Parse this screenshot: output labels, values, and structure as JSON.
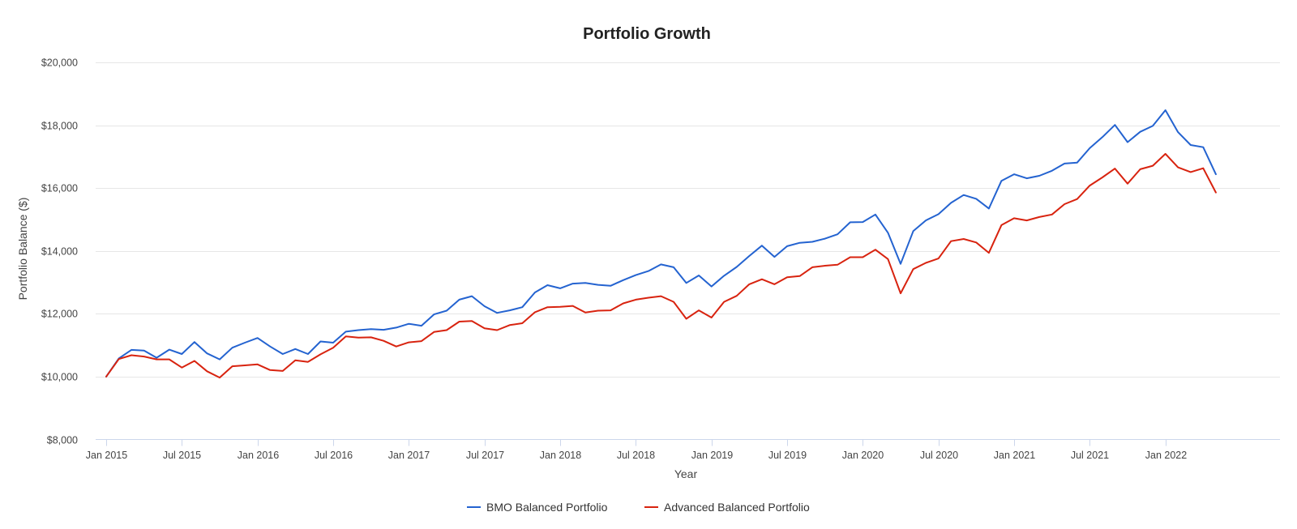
{
  "chart_data": {
    "type": "line",
    "title": "Portfolio Growth",
    "xlabel": "Year",
    "ylabel": "Portfolio Balance ($)",
    "ylim": [
      8000,
      20000
    ],
    "yticks": [
      8000,
      10000,
      12000,
      14000,
      16000,
      18000,
      20000
    ],
    "ytick_labels": [
      "$8,000",
      "$10,000",
      "$12,000",
      "$14,000",
      "$16,000",
      "$18,000",
      "$20,000"
    ],
    "xlim": [
      0,
      90
    ],
    "xticks": [
      {
        "label": "Jan 2015",
        "index": 0
      },
      {
        "label": "Jul 2015",
        "index": 6
      },
      {
        "label": "Jan 2016",
        "index": 12
      },
      {
        "label": "Jul 2016",
        "index": 18
      },
      {
        "label": "Jan 2017",
        "index": 24
      },
      {
        "label": "Jul 2017",
        "index": 30
      },
      {
        "label": "Jan 2018",
        "index": 36
      },
      {
        "label": "Jul 2018",
        "index": 42
      },
      {
        "label": "Jan 2019",
        "index": 48
      },
      {
        "label": "Jul 2019",
        "index": 54
      },
      {
        "label": "Jan 2020",
        "index": 60
      },
      {
        "label": "Jul 2020",
        "index": 66
      },
      {
        "label": "Jan 2021",
        "index": 72
      },
      {
        "label": "Jul 2021",
        "index": 78
      },
      {
        "label": "Jan 2022",
        "index": 84
      }
    ],
    "grid": true,
    "legend_position": "bottom-center",
    "series": [
      {
        "name": "BMO Balanced Portfolio",
        "color": "#2463d0",
        "values": [
          10000,
          10580,
          10850,
          10830,
          10600,
          10860,
          10720,
          11100,
          10740,
          10550,
          10920,
          11080,
          11230,
          10960,
          10720,
          10880,
          10720,
          11120,
          11080,
          11430,
          11480,
          11510,
          11490,
          11560,
          11680,
          11620,
          11980,
          12100,
          12450,
          12560,
          12240,
          12030,
          12110,
          12210,
          12680,
          12910,
          12810,
          12960,
          12980,
          12920,
          12890,
          13070,
          13230,
          13360,
          13570,
          13480,
          12980,
          13220,
          12870,
          13210,
          13490,
          13840,
          14170,
          13810,
          14150,
          14260,
          14290,
          14390,
          14530,
          14910,
          14920,
          15160,
          14580,
          13590,
          14630,
          14970,
          15170,
          15530,
          15780,
          15660,
          15350,
          16230,
          16440,
          16310,
          16390,
          16550,
          16780,
          16810,
          17270,
          17620,
          18010,
          17460,
          17790,
          17980,
          18480,
          17780,
          17370,
          17300,
          16440
        ]
      },
      {
        "name": "Advanced Balanced Portfolio",
        "color": "#d8230f",
        "values": [
          10000,
          10560,
          10680,
          10640,
          10550,
          10550,
          10290,
          10500,
          10170,
          9970,
          10330,
          10360,
          10390,
          10210,
          10180,
          10520,
          10470,
          10710,
          10920,
          11280,
          11240,
          11250,
          11140,
          10960,
          11090,
          11130,
          11420,
          11480,
          11750,
          11770,
          11540,
          11480,
          11640,
          11700,
          12050,
          12210,
          12220,
          12250,
          12040,
          12100,
          12110,
          12330,
          12450,
          12510,
          12560,
          12380,
          11840,
          12110,
          11880,
          12380,
          12570,
          12940,
          13100,
          12940,
          13160,
          13200,
          13480,
          13530,
          13560,
          13800,
          13800,
          14040,
          13740,
          12650,
          13420,
          13620,
          13760,
          14310,
          14380,
          14270,
          13940,
          14820,
          15040,
          14970,
          15080,
          15160,
          15490,
          15650,
          16080,
          16340,
          16620,
          16140,
          16600,
          16710,
          17090,
          16660,
          16510,
          16630,
          15860
        ]
      }
    ]
  }
}
